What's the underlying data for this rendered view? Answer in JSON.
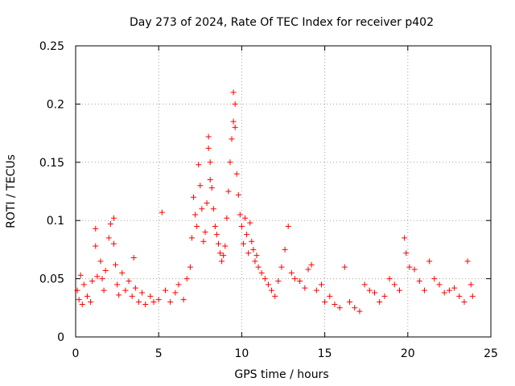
{
  "chart_data": {
    "type": "scatter",
    "title": "Day 273 of 2024, Rate Of TEC Index for receiver p402",
    "xlabel": "GPS time / hours",
    "ylabel": "ROTI / TECUs",
    "xlim": [
      0,
      25
    ],
    "ylim": [
      0,
      0.25
    ],
    "xticks": [
      0,
      5,
      10,
      15,
      20,
      25
    ],
    "xtick_labels": [
      "0",
      "5",
      "10",
      "15",
      "20",
      "25"
    ],
    "yticks": [
      0,
      0.05,
      0.1,
      0.15,
      0.2,
      0.25
    ],
    "ytick_labels": [
      "0",
      "0.05",
      "0.1",
      "0.15",
      "0.2",
      "0.25"
    ],
    "grid": true,
    "marker": "+",
    "series": [
      {
        "name": "ROTI",
        "color": "#ff0000",
        "x": [
          0.1,
          0.2,
          0.3,
          0.4,
          0.5,
          0.7,
          0.9,
          1.0,
          1.2,
          1.2,
          1.3,
          1.5,
          1.6,
          1.7,
          1.8,
          2.0,
          2.1,
          2.3,
          2.3,
          2.4,
          2.5,
          2.6,
          2.8,
          3.0,
          3.2,
          3.4,
          3.5,
          3.6,
          3.8,
          4.0,
          4.2,
          4.5,
          4.7,
          5.0,
          5.2,
          5.4,
          5.7,
          6.0,
          6.2,
          6.5,
          6.7,
          6.9,
          7.0,
          7.1,
          7.2,
          7.3,
          7.4,
          7.5,
          7.6,
          7.7,
          7.8,
          7.9,
          8.0,
          8.0,
          8.1,
          8.1,
          8.2,
          8.3,
          8.4,
          8.5,
          8.6,
          8.7,
          8.8,
          8.9,
          9.0,
          9.1,
          9.2,
          9.3,
          9.4,
          9.5,
          9.5,
          9.6,
          9.6,
          9.7,
          9.8,
          9.9,
          10.0,
          10.1,
          10.2,
          10.3,
          10.4,
          10.5,
          10.6,
          10.7,
          10.8,
          10.9,
          11.0,
          11.2,
          11.4,
          11.6,
          11.8,
          12.0,
          12.2,
          12.4,
          12.6,
          12.8,
          13.0,
          13.2,
          13.5,
          13.8,
          14.0,
          14.2,
          14.5,
          14.8,
          15.0,
          15.3,
          15.6,
          15.9,
          16.2,
          16.5,
          16.8,
          17.1,
          17.4,
          17.7,
          18.0,
          18.3,
          18.6,
          18.9,
          19.2,
          19.5,
          19.8,
          19.9,
          20.1,
          20.4,
          20.7,
          21.0,
          21.3,
          21.6,
          21.9,
          22.2,
          22.5,
          22.8,
          23.1,
          23.4,
          23.6,
          23.8,
          23.9
        ],
        "y": [
          0.04,
          0.032,
          0.053,
          0.028,
          0.045,
          0.035,
          0.03,
          0.048,
          0.093,
          0.078,
          0.052,
          0.065,
          0.05,
          0.04,
          0.057,
          0.085,
          0.097,
          0.102,
          0.08,
          0.062,
          0.045,
          0.036,
          0.055,
          0.04,
          0.048,
          0.035,
          0.068,
          0.042,
          0.03,
          0.038,
          0.028,
          0.035,
          0.03,
          0.032,
          0.107,
          0.04,
          0.03,
          0.038,
          0.045,
          0.032,
          0.05,
          0.06,
          0.085,
          0.12,
          0.105,
          0.095,
          0.148,
          0.13,
          0.11,
          0.082,
          0.09,
          0.115,
          0.162,
          0.172,
          0.15,
          0.135,
          0.128,
          0.11,
          0.095,
          0.088,
          0.08,
          0.072,
          0.065,
          0.07,
          0.078,
          0.102,
          0.125,
          0.15,
          0.17,
          0.185,
          0.21,
          0.2,
          0.18,
          0.14,
          0.122,
          0.105,
          0.095,
          0.08,
          0.102,
          0.088,
          0.072,
          0.098,
          0.082,
          0.075,
          0.065,
          0.07,
          0.06,
          0.055,
          0.05,
          0.045,
          0.04,
          0.035,
          0.048,
          0.06,
          0.075,
          0.095,
          0.055,
          0.05,
          0.048,
          0.042,
          0.058,
          0.062,
          0.04,
          0.045,
          0.03,
          0.035,
          0.028,
          0.025,
          0.06,
          0.03,
          0.025,
          0.022,
          0.045,
          0.04,
          0.038,
          0.03,
          0.035,
          0.05,
          0.045,
          0.04,
          0.085,
          0.072,
          0.06,
          0.058,
          0.048,
          0.04,
          0.065,
          0.05,
          0.045,
          0.038,
          0.04,
          0.042,
          0.035,
          0.03,
          0.065,
          0.045,
          0.035
        ]
      }
    ]
  }
}
